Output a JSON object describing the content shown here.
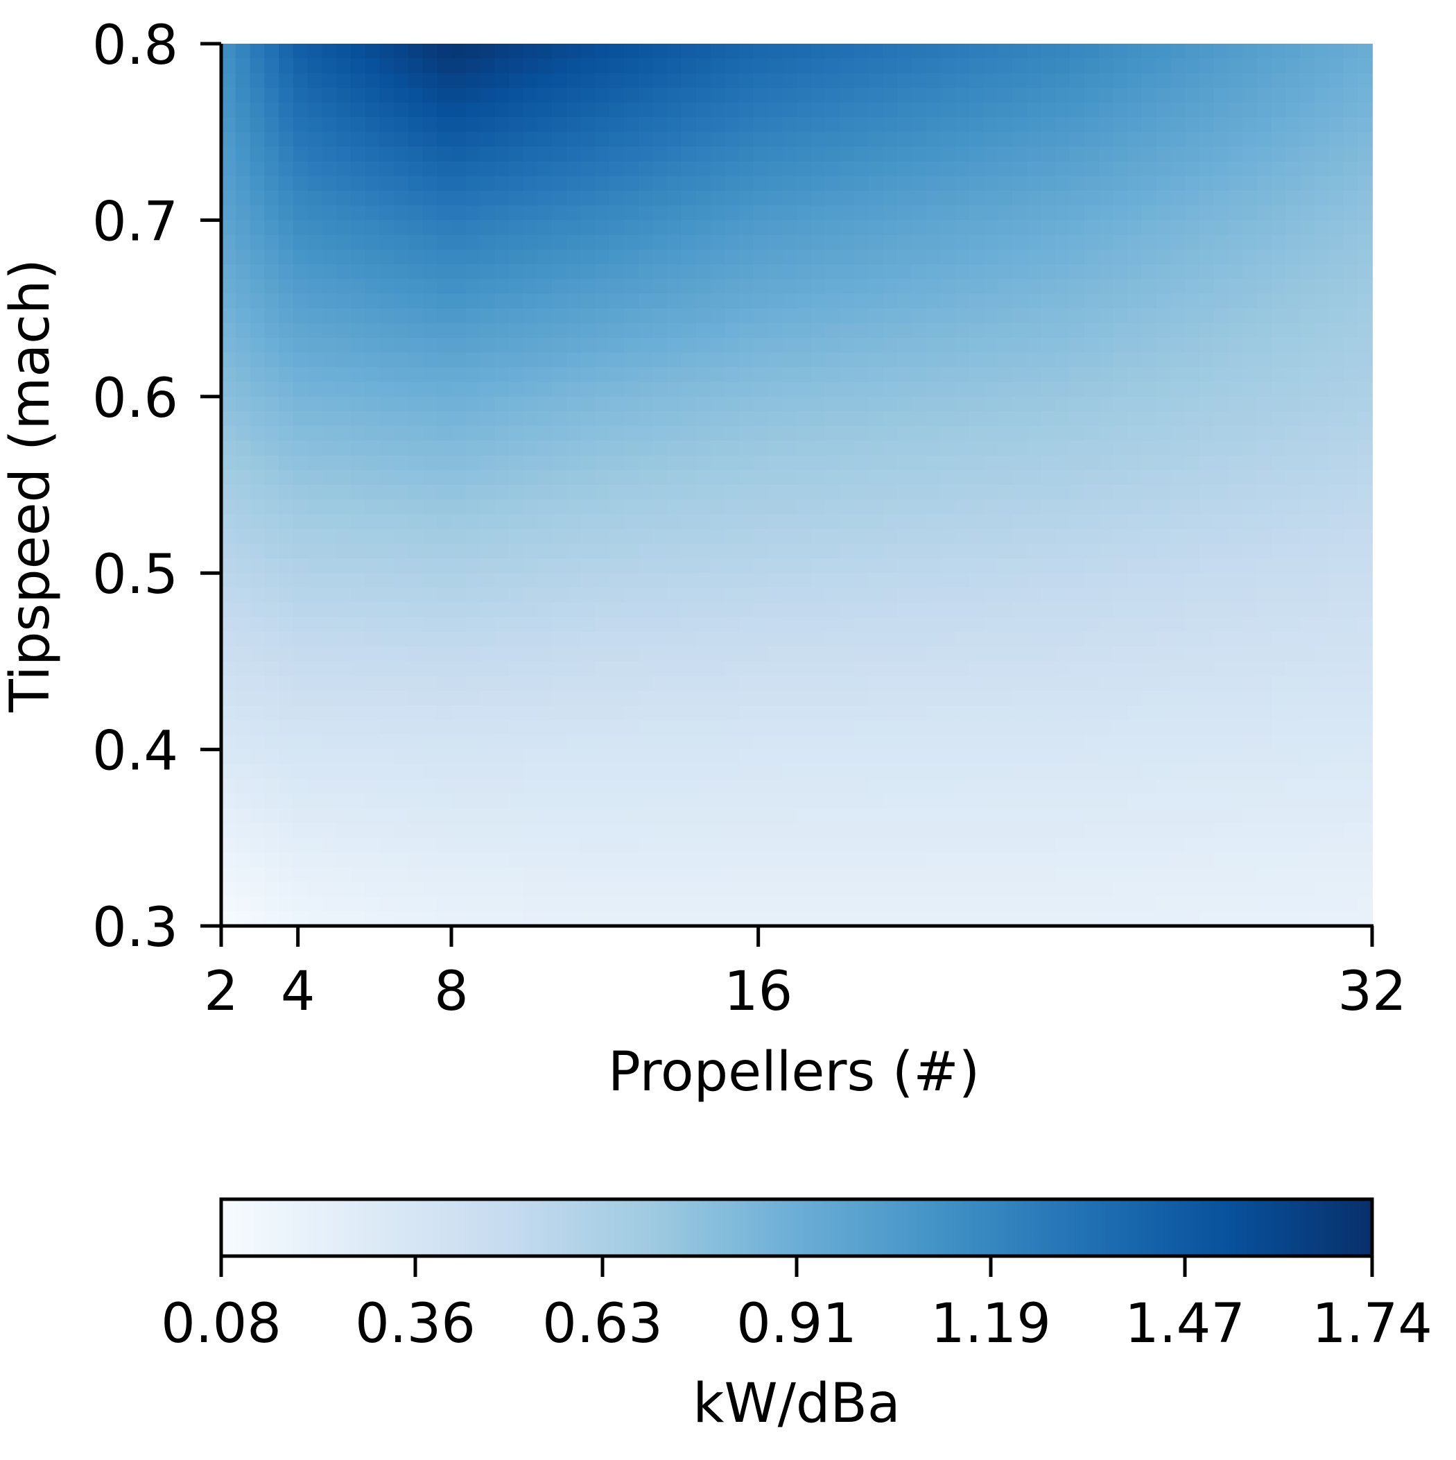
{
  "chart_data": {
    "type": "heatmap",
    "title": "",
    "xlabel": "Propellers (#)",
    "ylabel": "Tipspeed (mach)",
    "x_ticks": [
      2,
      4,
      8,
      16,
      32
    ],
    "x_tick_labels": [
      "2",
      "4",
      "8",
      "16",
      "32"
    ],
    "xlim": [
      2,
      32
    ],
    "y_ticks": [
      0.3,
      0.4,
      0.5,
      0.6,
      0.7,
      0.8
    ],
    "y_tick_labels": [
      "0.3",
      "0.4",
      "0.5",
      "0.6",
      "0.7",
      "0.8"
    ],
    "ylim": [
      0.3,
      0.8
    ],
    "grid": false,
    "colormap": "Blues",
    "colorbar": {
      "label": "kW/dBa",
      "orientation": "horizontal",
      "placement": "bottom",
      "min": 0.08,
      "max": 1.74,
      "ticks": [
        0.08,
        0.36,
        0.63,
        0.91,
        1.19,
        1.47,
        1.74
      ],
      "tick_labels": [
        "0.08",
        "0.36",
        "0.63",
        "0.91",
        "1.19",
        "1.47",
        "1.74"
      ]
    },
    "x_samples": [
      2,
      4,
      8,
      12,
      16,
      24,
      32
    ],
    "y_samples": [
      0.8,
      0.7,
      0.6,
      0.5,
      0.4,
      0.3
    ],
    "z": [
      [
        1.12,
        1.45,
        1.72,
        1.55,
        1.4,
        1.2,
        0.92
      ],
      [
        0.98,
        1.15,
        1.26,
        1.17,
        1.06,
        0.92,
        0.75
      ],
      [
        0.78,
        0.86,
        0.9,
        0.83,
        0.78,
        0.72,
        0.62
      ],
      [
        0.55,
        0.6,
        0.62,
        0.58,
        0.56,
        0.52,
        0.46
      ],
      [
        0.33,
        0.36,
        0.37,
        0.36,
        0.35,
        0.34,
        0.32
      ],
      [
        0.08,
        0.16,
        0.2,
        0.22,
        0.22,
        0.22,
        0.2
      ]
    ]
  }
}
